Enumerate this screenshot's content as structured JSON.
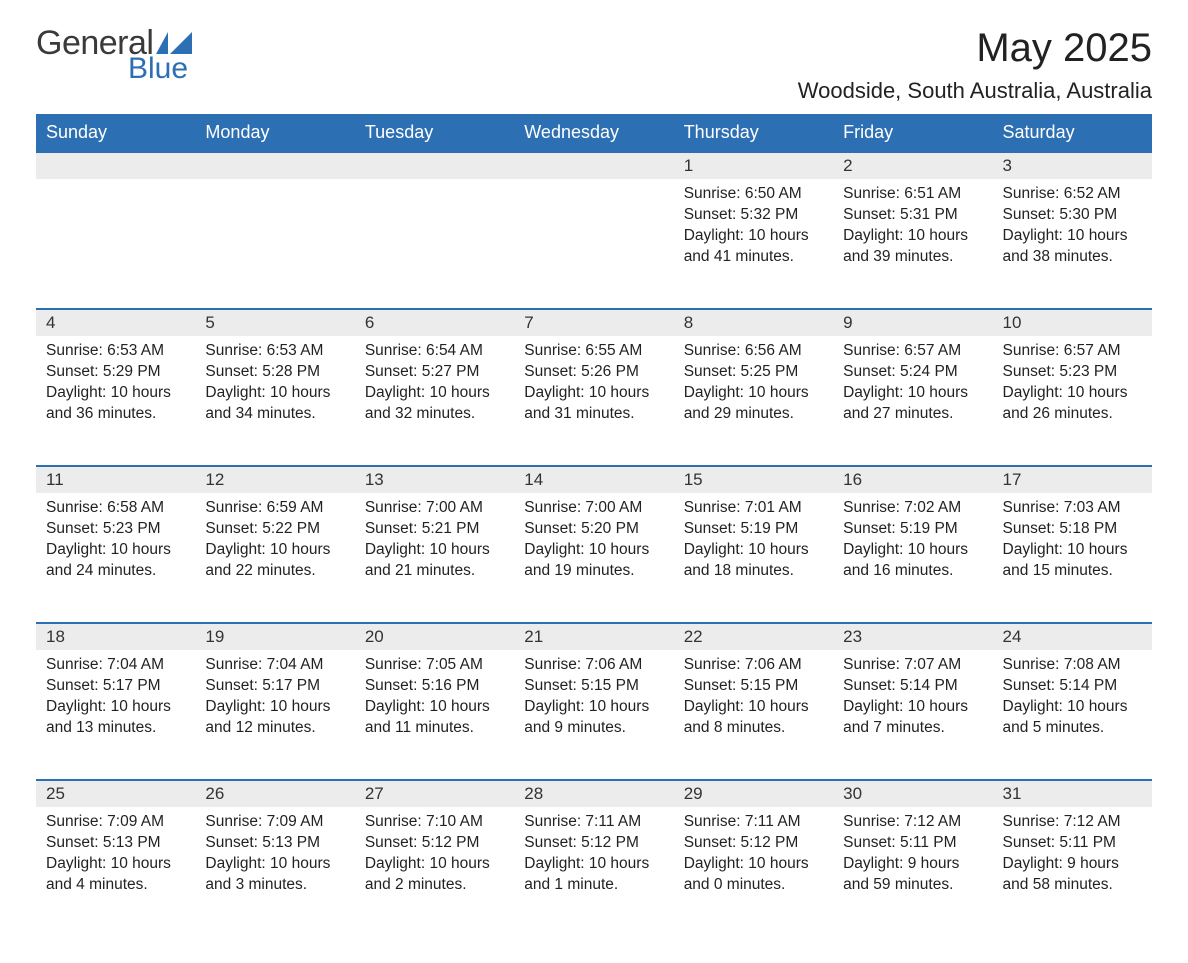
{
  "brand": {
    "word1": "General",
    "word2": "Blue",
    "accent_color": "#2d6fb3",
    "text_color": "#3a3a3a"
  },
  "title": "May 2025",
  "location": "Woodside, South Australia, Australia",
  "weekday_labels": [
    "Sunday",
    "Monday",
    "Tuesday",
    "Wednesday",
    "Thursday",
    "Friday",
    "Saturday"
  ],
  "colors": {
    "header_bg": "#2d6fb3",
    "header_text": "#ffffff",
    "daynum_bg": "#ececec",
    "rule": "#2d6fb3",
    "body_text": "#222222",
    "page_bg": "#ffffff"
  },
  "typography": {
    "month_title_fontsize_pt": 30,
    "location_fontsize_pt": 16,
    "weekday_fontsize_pt": 13,
    "daynum_fontsize_pt": 13,
    "cell_fontsize_pt": 11.5
  },
  "weeks": [
    [
      null,
      null,
      null,
      null,
      {
        "day": "1",
        "sunrise": "Sunrise: 6:50 AM",
        "sunset": "Sunset: 5:32 PM",
        "daylight": "Daylight: 10 hours and 41 minutes."
      },
      {
        "day": "2",
        "sunrise": "Sunrise: 6:51 AM",
        "sunset": "Sunset: 5:31 PM",
        "daylight": "Daylight: 10 hours and 39 minutes."
      },
      {
        "day": "3",
        "sunrise": "Sunrise: 6:52 AM",
        "sunset": "Sunset: 5:30 PM",
        "daylight": "Daylight: 10 hours and 38 minutes."
      }
    ],
    [
      {
        "day": "4",
        "sunrise": "Sunrise: 6:53 AM",
        "sunset": "Sunset: 5:29 PM",
        "daylight": "Daylight: 10 hours and 36 minutes."
      },
      {
        "day": "5",
        "sunrise": "Sunrise: 6:53 AM",
        "sunset": "Sunset: 5:28 PM",
        "daylight": "Daylight: 10 hours and 34 minutes."
      },
      {
        "day": "6",
        "sunrise": "Sunrise: 6:54 AM",
        "sunset": "Sunset: 5:27 PM",
        "daylight": "Daylight: 10 hours and 32 minutes."
      },
      {
        "day": "7",
        "sunrise": "Sunrise: 6:55 AM",
        "sunset": "Sunset: 5:26 PM",
        "daylight": "Daylight: 10 hours and 31 minutes."
      },
      {
        "day": "8",
        "sunrise": "Sunrise: 6:56 AM",
        "sunset": "Sunset: 5:25 PM",
        "daylight": "Daylight: 10 hours and 29 minutes."
      },
      {
        "day": "9",
        "sunrise": "Sunrise: 6:57 AM",
        "sunset": "Sunset: 5:24 PM",
        "daylight": "Daylight: 10 hours and 27 minutes."
      },
      {
        "day": "10",
        "sunrise": "Sunrise: 6:57 AM",
        "sunset": "Sunset: 5:23 PM",
        "daylight": "Daylight: 10 hours and 26 minutes."
      }
    ],
    [
      {
        "day": "11",
        "sunrise": "Sunrise: 6:58 AM",
        "sunset": "Sunset: 5:23 PM",
        "daylight": "Daylight: 10 hours and 24 minutes."
      },
      {
        "day": "12",
        "sunrise": "Sunrise: 6:59 AM",
        "sunset": "Sunset: 5:22 PM",
        "daylight": "Daylight: 10 hours and 22 minutes."
      },
      {
        "day": "13",
        "sunrise": "Sunrise: 7:00 AM",
        "sunset": "Sunset: 5:21 PM",
        "daylight": "Daylight: 10 hours and 21 minutes."
      },
      {
        "day": "14",
        "sunrise": "Sunrise: 7:00 AM",
        "sunset": "Sunset: 5:20 PM",
        "daylight": "Daylight: 10 hours and 19 minutes."
      },
      {
        "day": "15",
        "sunrise": "Sunrise: 7:01 AM",
        "sunset": "Sunset: 5:19 PM",
        "daylight": "Daylight: 10 hours and 18 minutes."
      },
      {
        "day": "16",
        "sunrise": "Sunrise: 7:02 AM",
        "sunset": "Sunset: 5:19 PM",
        "daylight": "Daylight: 10 hours and 16 minutes."
      },
      {
        "day": "17",
        "sunrise": "Sunrise: 7:03 AM",
        "sunset": "Sunset: 5:18 PM",
        "daylight": "Daylight: 10 hours and 15 minutes."
      }
    ],
    [
      {
        "day": "18",
        "sunrise": "Sunrise: 7:04 AM",
        "sunset": "Sunset: 5:17 PM",
        "daylight": "Daylight: 10 hours and 13 minutes."
      },
      {
        "day": "19",
        "sunrise": "Sunrise: 7:04 AM",
        "sunset": "Sunset: 5:17 PM",
        "daylight": "Daylight: 10 hours and 12 minutes."
      },
      {
        "day": "20",
        "sunrise": "Sunrise: 7:05 AM",
        "sunset": "Sunset: 5:16 PM",
        "daylight": "Daylight: 10 hours and 11 minutes."
      },
      {
        "day": "21",
        "sunrise": "Sunrise: 7:06 AM",
        "sunset": "Sunset: 5:15 PM",
        "daylight": "Daylight: 10 hours and 9 minutes."
      },
      {
        "day": "22",
        "sunrise": "Sunrise: 7:06 AM",
        "sunset": "Sunset: 5:15 PM",
        "daylight": "Daylight: 10 hours and 8 minutes."
      },
      {
        "day": "23",
        "sunrise": "Sunrise: 7:07 AM",
        "sunset": "Sunset: 5:14 PM",
        "daylight": "Daylight: 10 hours and 7 minutes."
      },
      {
        "day": "24",
        "sunrise": "Sunrise: 7:08 AM",
        "sunset": "Sunset: 5:14 PM",
        "daylight": "Daylight: 10 hours and 5 minutes."
      }
    ],
    [
      {
        "day": "25",
        "sunrise": "Sunrise: 7:09 AM",
        "sunset": "Sunset: 5:13 PM",
        "daylight": "Daylight: 10 hours and 4 minutes."
      },
      {
        "day": "26",
        "sunrise": "Sunrise: 7:09 AM",
        "sunset": "Sunset: 5:13 PM",
        "daylight": "Daylight: 10 hours and 3 minutes."
      },
      {
        "day": "27",
        "sunrise": "Sunrise: 7:10 AM",
        "sunset": "Sunset: 5:12 PM",
        "daylight": "Daylight: 10 hours and 2 minutes."
      },
      {
        "day": "28",
        "sunrise": "Sunrise: 7:11 AM",
        "sunset": "Sunset: 5:12 PM",
        "daylight": "Daylight: 10 hours and 1 minute."
      },
      {
        "day": "29",
        "sunrise": "Sunrise: 7:11 AM",
        "sunset": "Sunset: 5:12 PM",
        "daylight": "Daylight: 10 hours and 0 minutes."
      },
      {
        "day": "30",
        "sunrise": "Sunrise: 7:12 AM",
        "sunset": "Sunset: 5:11 PM",
        "daylight": "Daylight: 9 hours and 59 minutes."
      },
      {
        "day": "31",
        "sunrise": "Sunrise: 7:12 AM",
        "sunset": "Sunset: 5:11 PM",
        "daylight": "Daylight: 9 hours and 58 minutes."
      }
    ]
  ]
}
